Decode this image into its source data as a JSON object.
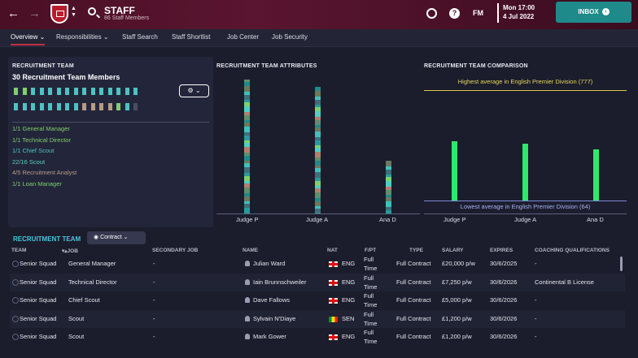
{
  "header": {
    "title": "STAFF",
    "subtitle": "86 Staff Members",
    "date_day": "Mon 17:00",
    "date_date": "4 Jul 2022",
    "fm_logo": "FM",
    "inbox_label": "INBOX"
  },
  "tabs": [
    {
      "label": "Overview",
      "active": true,
      "dropdown": true
    },
    {
      "label": "Responsibilities",
      "dropdown": true
    },
    {
      "label": "Staff Search"
    },
    {
      "label": "Staff Shortlist"
    },
    {
      "label": "Job Center"
    },
    {
      "label": "Job Security"
    }
  ],
  "recruitment_team": {
    "title": "RECRUITMENT TEAM",
    "count_label": "30 Recruitment Team Members",
    "roles": [
      {
        "label": "1/1 General Manager",
        "color": "#7fd06a"
      },
      {
        "label": "1/1 Technical Director",
        "color": "#7fd06a"
      },
      {
        "label": "1/1 Chief Scout",
        "color": "#4fc2c2"
      },
      {
        "label": "22/16 Scout",
        "color": "#56d0c4"
      },
      {
        "label": "4/5 Recruitment Analyst",
        "color": "#b89a86"
      },
      {
        "label": "1/1 Loan Manager",
        "color": "#7fd06a"
      }
    ]
  },
  "attributes": {
    "title": "RECRUITMENT TEAM ATTRIBUTES",
    "categories": [
      "Judge P",
      "Judge A",
      "Ana D"
    ]
  },
  "comparison": {
    "title": "RECRUITMENT TEAM COMPARISON",
    "highest": "Highest average in English Premier Division (777)",
    "lowest": "Lowest average in English Premier Division (64)",
    "categories": [
      "Judge P",
      "Judge A",
      "Ana D"
    ]
  },
  "chart_data": {
    "type": "bar",
    "title": "RECRUITMENT TEAM COMPARISON",
    "categories": [
      "Judge P",
      "Judge A",
      "Ana D"
    ],
    "reference_lines": [
      {
        "label": "Highest average in English Premier Division",
        "value": 777
      },
      {
        "label": "Lowest average in English Premier Division",
        "value": 64
      }
    ]
  },
  "table": {
    "section_label": "RECRUITMENT TEAM",
    "filter_label": "Contract",
    "headers": [
      "TEAM",
      "JOB",
      "SECONDARY JOB",
      "NAME",
      "NAT",
      "F/PT",
      "TYPE",
      "SALARY",
      "EXPIRES",
      "COACHING QUALIFICATIONS"
    ],
    "rows": [
      {
        "team": "Senior Squad",
        "job": "General Manager",
        "secondary": "-",
        "name": "Julian Ward",
        "nat": "ENG",
        "fpt1": "Full",
        "fpt2": "Time",
        "type": "Full Contract",
        "salary": "£20,000 p/w",
        "expires": "30/6/2025",
        "quals": "-"
      },
      {
        "team": "Senior Squad",
        "job": "Technical Director",
        "secondary": "-",
        "name": "Iain Brunnschweiler",
        "nat": "ENG",
        "fpt1": "Full",
        "fpt2": "Time",
        "type": "Full Contract",
        "salary": "£7,250 p/w",
        "expires": "30/6/2026",
        "quals": "Continental B License"
      },
      {
        "team": "Senior Squad",
        "job": "Chief Scout",
        "secondary": "-",
        "name": "Dave Fallows",
        "nat": "ENG",
        "fpt1": "Full",
        "fpt2": "Time",
        "type": "Full Contract",
        "salary": "£5,000 p/w",
        "expires": "30/6/2026",
        "quals": "-"
      },
      {
        "team": "Senior Squad",
        "job": "Scout",
        "secondary": "-",
        "name": "Sylvain N'Diaye",
        "nat": "SEN",
        "fpt1": "Full",
        "fpt2": "Time",
        "type": "Full Contract",
        "salary": "£1,200 p/w",
        "expires": "30/6/2026",
        "quals": "-"
      },
      {
        "team": "Senior Squad",
        "job": "Scout",
        "secondary": "-",
        "name": "Mark Gower",
        "nat": "ENG",
        "fpt1": "Full",
        "fpt2": "Time",
        "type": "Full Contract",
        "salary": "£1,200 p/w",
        "expires": "30/6/2026",
        "quals": "-"
      }
    ]
  }
}
